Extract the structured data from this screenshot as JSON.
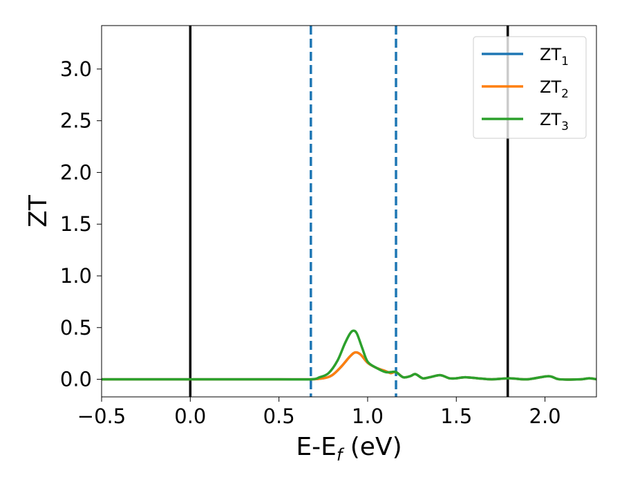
{
  "chart_data": {
    "type": "line",
    "xlabel": "E-E_f (eV)",
    "ylabel": "ZT",
    "xlim": [
      -0.5,
      2.29
    ],
    "ylim": [
      -0.17,
      3.42
    ],
    "x_ticks": [
      -0.5,
      0.0,
      0.5,
      1.0,
      1.5,
      2.0
    ],
    "x_tick_labels": [
      "−0.5",
      "0.0",
      "0.5",
      "1.0",
      "1.5",
      "2.0"
    ],
    "y_ticks": [
      0.0,
      0.5,
      1.0,
      1.5,
      2.0,
      2.5,
      3.0
    ],
    "y_tick_labels": [
      "0.0",
      "0.5",
      "1.0",
      "1.5",
      "2.0",
      "2.5",
      "3.0"
    ],
    "grid": false,
    "legend_position": "top-right",
    "series": [
      {
        "name": "ZT_1",
        "color": "#1f77b4",
        "x": [
          -0.5,
          0.0,
          0.5,
          0.68,
          0.75,
          0.8,
          0.85,
          0.9,
          0.93,
          0.96,
          1.0,
          1.05,
          1.1,
          1.13,
          1.16,
          1.2,
          1.24,
          1.27,
          1.31,
          1.35,
          1.41,
          1.46,
          1.5,
          1.55,
          1.62,
          1.7,
          1.8,
          1.9,
          2.02,
          2.08,
          2.2,
          2.25,
          2.29
        ],
        "y": [
          0.0,
          0.0,
          0.0,
          0.0,
          0.01,
          0.04,
          0.12,
          0.22,
          0.26,
          0.24,
          0.16,
          0.11,
          0.08,
          0.06,
          0.07,
          0.02,
          0.03,
          0.05,
          0.01,
          0.02,
          0.04,
          0.01,
          0.01,
          0.02,
          0.01,
          0.0,
          0.01,
          0.0,
          0.03,
          0.0,
          0.0,
          0.01,
          0.0
        ]
      },
      {
        "name": "ZT_2",
        "color": "#ff7f0e",
        "x": [
          -0.5,
          0.0,
          0.5,
          0.68,
          0.75,
          0.8,
          0.85,
          0.9,
          0.93,
          0.96,
          1.0,
          1.05,
          1.1,
          1.13,
          1.16,
          1.2,
          1.24,
          1.27,
          1.31,
          1.35,
          1.41,
          1.46,
          1.5,
          1.55,
          1.62,
          1.7,
          1.8,
          1.9,
          2.02,
          2.08,
          2.2,
          2.25,
          2.29
        ],
        "y": [
          0.0,
          0.0,
          0.0,
          0.0,
          0.01,
          0.04,
          0.12,
          0.22,
          0.26,
          0.24,
          0.16,
          0.11,
          0.08,
          0.06,
          0.07,
          0.02,
          0.03,
          0.05,
          0.01,
          0.02,
          0.04,
          0.01,
          0.01,
          0.02,
          0.01,
          0.0,
          0.01,
          0.0,
          0.03,
          0.0,
          0.0,
          0.01,
          0.0
        ]
      },
      {
        "name": "ZT_3",
        "color": "#2ca02c",
        "x": [
          -0.5,
          0.0,
          0.5,
          0.68,
          0.73,
          0.78,
          0.83,
          0.87,
          0.9,
          0.92,
          0.94,
          0.97,
          1.0,
          1.05,
          1.1,
          1.13,
          1.16,
          1.2,
          1.24,
          1.27,
          1.31,
          1.35,
          1.41,
          1.46,
          1.5,
          1.55,
          1.62,
          1.7,
          1.8,
          1.9,
          2.02,
          2.08,
          2.2,
          2.25,
          2.29
        ],
        "y": [
          0.0,
          0.0,
          0.0,
          0.0,
          0.02,
          0.06,
          0.18,
          0.34,
          0.44,
          0.47,
          0.44,
          0.3,
          0.17,
          0.11,
          0.07,
          0.07,
          0.07,
          0.02,
          0.03,
          0.05,
          0.01,
          0.02,
          0.04,
          0.01,
          0.01,
          0.02,
          0.01,
          0.0,
          0.01,
          0.0,
          0.03,
          0.0,
          0.0,
          0.01,
          0.0
        ]
      }
    ],
    "vertical_lines": [
      {
        "x": 0.0,
        "color": "#000000",
        "style": "solid"
      },
      {
        "x": 1.79,
        "color": "#000000",
        "style": "solid"
      },
      {
        "x": 0.68,
        "color": "#1f77b4",
        "style": "dashed"
      },
      {
        "x": 1.16,
        "color": "#1f77b4",
        "style": "dashed"
      }
    ]
  }
}
